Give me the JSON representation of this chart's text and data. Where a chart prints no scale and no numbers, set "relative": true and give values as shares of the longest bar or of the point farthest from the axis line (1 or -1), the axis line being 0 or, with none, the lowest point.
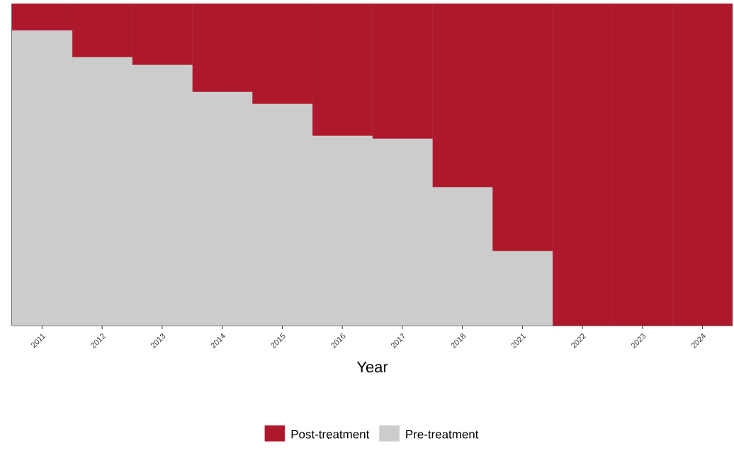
{
  "chart_data": {
    "type": "bar",
    "stacked": true,
    "relative": true,
    "xlabel": "Year",
    "categories": [
      "2011",
      "2012",
      "2013",
      "2014",
      "2015",
      "2016",
      "2017",
      "2018",
      "2021",
      "2022",
      "2023",
      "2024"
    ],
    "series": [
      {
        "name": "Pre-treatment",
        "color": "#cccccc",
        "values": [
          0.916,
          0.833,
          0.809,
          0.725,
          0.688,
          0.589,
          0.58,
          0.429,
          0.231,
          0,
          0,
          0
        ]
      },
      {
        "name": "Post-treatment",
        "color": "#ae182c",
        "values": [
          0.084,
          0.167,
          0.191,
          0.275,
          0.312,
          0.411,
          0.42,
          0.571,
          0.769,
          1,
          1,
          1
        ]
      }
    ],
    "legend": "bottom",
    "tick_labels": "x"
  }
}
